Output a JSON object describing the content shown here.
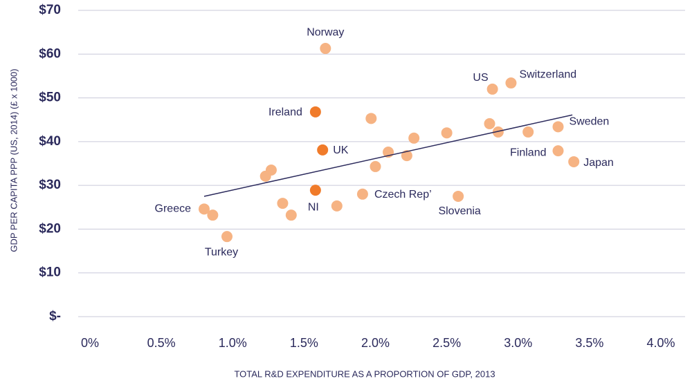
{
  "chart_data": {
    "type": "scatter",
    "y_axis_label": "GDP PER CAPITA PPP (US, 2014) (£ x 1000)",
    "x_axis_label": "TOTAL R&D EXPENDITURE AS A PROPORTION OF GDP, 2013",
    "xlim": [
      -0.08,
      4.2
    ],
    "ylim": [
      -3,
      70
    ],
    "xticks": [
      {
        "value": 0,
        "label": "0%"
      },
      {
        "value": 0.5,
        "label": "0.5%"
      },
      {
        "value": 1.0,
        "label": "1.0%"
      },
      {
        "value": 1.5,
        "label": "1.5%"
      },
      {
        "value": 2.0,
        "label": "2.0%"
      },
      {
        "value": 2.5,
        "label": "2.5%"
      },
      {
        "value": 3.0,
        "label": "3.0%"
      },
      {
        "value": 3.5,
        "label": "3.5%"
      },
      {
        "value": 4.0,
        "label": "4.0%"
      }
    ],
    "yticks": [
      {
        "value": 0,
        "label": "$-"
      },
      {
        "value": 10,
        "label": "$10"
      },
      {
        "value": 20,
        "label": "$20"
      },
      {
        "value": 30,
        "label": "$30"
      },
      {
        "value": 40,
        "label": "$40"
      },
      {
        "value": 50,
        "label": "$50"
      },
      {
        "value": 60,
        "label": "$60"
      },
      {
        "value": 70,
        "label": "$70"
      }
    ],
    "grid": true,
    "series": [
      {
        "color": "#f6b383",
        "x": [
          1.65,
          2.82,
          2.95,
          1.97,
          2.27,
          2.5,
          2.8,
          2.86,
          3.07,
          3.28,
          2.09,
          2.22,
          2.0,
          3.28,
          3.39,
          1.27,
          1.23,
          1.91,
          2.58,
          1.35,
          1.73,
          0.8,
          0.86,
          1.41,
          0.96
        ],
        "values": [
          61.3,
          52.0,
          53.4,
          45.3,
          40.8,
          42.0,
          44.1,
          42.2,
          42.2,
          43.4,
          37.6,
          36.8,
          34.3,
          37.9,
          35.4,
          33.5,
          32.1,
          28.0,
          27.5,
          25.9,
          25.3,
          24.6,
          23.2,
          23.2,
          18.3
        ],
        "labels": [
          "Norway",
          "US",
          "Switzerland",
          null,
          null,
          null,
          null,
          null,
          null,
          "Sweden",
          null,
          null,
          null,
          "Finland",
          "Japan",
          null,
          null,
          "Czech Rep’",
          "Slovenia",
          null,
          null,
          "Greece",
          null,
          null,
          "Turkey"
        ]
      },
      {
        "color": "#f07b2a",
        "x": [
          1.58,
          1.63,
          1.58
        ],
        "values": [
          46.8,
          38.1,
          28.9
        ],
        "labels": [
          "Ireland",
          "UK",
          "NI"
        ]
      }
    ],
    "trendline": {
      "color": "#2b2a5c",
      "x": [
        0.8,
        3.38
      ],
      "values": [
        27.5,
        46.1
      ]
    }
  }
}
